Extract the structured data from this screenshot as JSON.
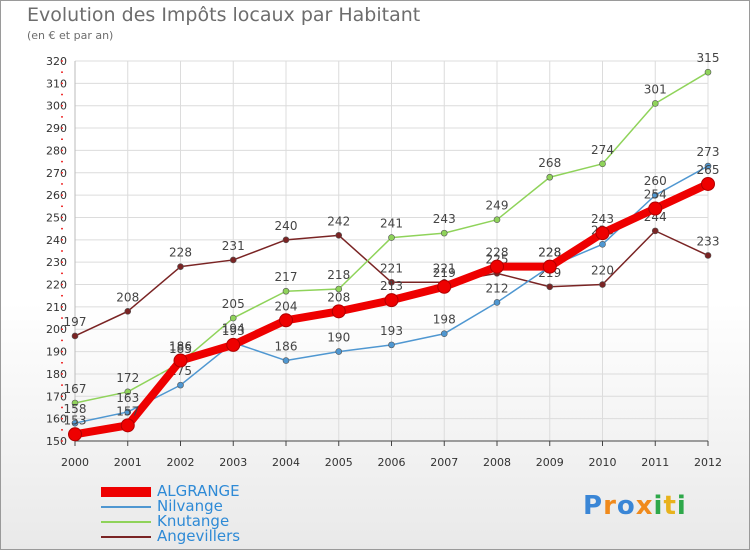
{
  "chart_data": {
    "type": "line",
    "title": "Evolution des Impôts locaux par Habitant",
    "subtitle": "(en € et par an)",
    "xlabel": "",
    "ylabel": "",
    "categories": [
      "2000",
      "2001",
      "2002",
      "2003",
      "2004",
      "2005",
      "2006",
      "2007",
      "2008",
      "2009",
      "2010",
      "2011",
      "2012"
    ],
    "ylim": [
      150,
      320
    ],
    "yticks": [
      150,
      160,
      170,
      180,
      190,
      200,
      210,
      220,
      230,
      240,
      250,
      260,
      270,
      280,
      290,
      300,
      310,
      320
    ],
    "grid": true,
    "legend_position": "bottom-left",
    "series": [
      {
        "name": "Angevillers",
        "color": "#7a2424",
        "values": [
          197,
          208,
          228,
          231,
          240,
          242,
          221,
          221,
          225,
          219,
          220,
          244,
          233
        ]
      },
      {
        "name": "Knutange",
        "color": "#8fd35a",
        "values": [
          167,
          172,
          185,
          205,
          217,
          218,
          241,
          243,
          249,
          268,
          274,
          301,
          315
        ]
      },
      {
        "name": "Nilvange",
        "color": "#4f97d1",
        "values": [
          158,
          163,
          175,
          194,
          186,
          190,
          193,
          198,
          212,
          228,
          238,
          260,
          273
        ]
      },
      {
        "name": "ALGRANGE",
        "color": "#ee0000",
        "values": [
          153,
          157,
          186,
          193,
          204,
          208,
          213,
          219,
          228,
          228,
          243,
          254,
          265
        ]
      }
    ]
  },
  "legend": {
    "items": [
      {
        "name": "ALGRANGE",
        "color": "#ee0000"
      },
      {
        "name": "Nilvange",
        "color": "#4f97d1"
      },
      {
        "name": "Knutange",
        "color": "#8fd35a"
      },
      {
        "name": "Angevillers",
        "color": "#7a2424"
      }
    ]
  },
  "logo": {
    "letters": [
      {
        "char": "P",
        "color": "#3a86d6"
      },
      {
        "char": "r",
        "color": "#f08a1c"
      },
      {
        "char": "o",
        "color": "#3a86d6"
      },
      {
        "char": "x",
        "color": "#f08a1c"
      },
      {
        "char": "i",
        "color": "#2ea84a"
      },
      {
        "char": "t",
        "color": "#e8b21c"
      },
      {
        "char": "i",
        "color": "#2ea84a"
      }
    ]
  }
}
